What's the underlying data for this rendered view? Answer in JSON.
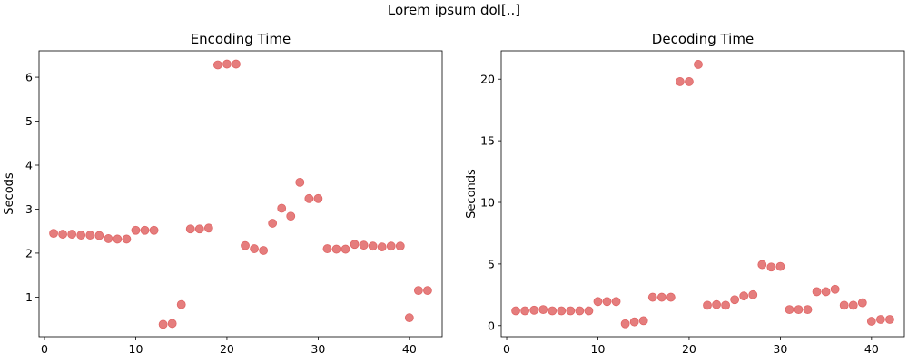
{
  "figure": {
    "suptitle": "Lorem ipsum dol[..]",
    "marker_color": "#e06666"
  },
  "chart_data": [
    {
      "type": "scatter",
      "title": "Encoding Time",
      "xlabel": "",
      "ylabel": "Secods",
      "xlim": [
        -0.6,
        43.6
      ],
      "ylim": [
        0.1,
        6.6
      ],
      "xticks": [
        0,
        10,
        20,
        30,
        40
      ],
      "yticks": [
        1,
        2,
        3,
        4,
        5,
        6
      ],
      "grid": false,
      "series": [
        {
          "x": [
            1,
            2,
            3,
            4,
            5,
            6,
            7,
            8,
            9,
            10,
            11,
            12,
            13,
            14,
            15,
            16,
            17,
            18,
            19,
            20,
            21,
            22,
            23,
            24,
            25,
            26,
            27,
            28,
            29,
            30,
            31,
            32,
            33,
            34,
            35,
            36,
            37,
            38,
            39,
            40,
            41,
            42
          ],
          "y": [
            2.45,
            2.43,
            2.43,
            2.41,
            2.41,
            2.4,
            2.33,
            2.32,
            2.32,
            2.52,
            2.52,
            2.52,
            0.38,
            0.4,
            0.83,
            2.55,
            2.55,
            2.57,
            6.28,
            6.3,
            6.3,
            2.17,
            2.1,
            2.06,
            2.68,
            3.02,
            2.84,
            3.61,
            3.24,
            3.24,
            2.1,
            2.09,
            2.09,
            2.2,
            2.18,
            2.16,
            2.14,
            2.16,
            2.16,
            0.53,
            1.15,
            1.15
          ]
        }
      ]
    },
    {
      "type": "scatter",
      "title": "Decoding Time",
      "xlabel": "",
      "ylabel": "Seconds",
      "xlim": [
        -0.6,
        43.6
      ],
      "ylim": [
        -0.9,
        22.3
      ],
      "xticks": [
        0,
        10,
        20,
        30,
        40
      ],
      "yticks": [
        0,
        5,
        10,
        15,
        20
      ],
      "grid": false,
      "series": [
        {
          "x": [
            1,
            2,
            3,
            4,
            5,
            6,
            7,
            8,
            9,
            10,
            11,
            12,
            13,
            14,
            15,
            16,
            17,
            18,
            19,
            20,
            21,
            22,
            23,
            24,
            25,
            26,
            27,
            28,
            29,
            30,
            31,
            32,
            33,
            34,
            35,
            36,
            37,
            38,
            39,
            40,
            41,
            42
          ],
          "y": [
            1.2,
            1.2,
            1.25,
            1.3,
            1.2,
            1.2,
            1.2,
            1.2,
            1.2,
            1.95,
            1.95,
            1.95,
            0.15,
            0.3,
            0.4,
            2.3,
            2.3,
            2.3,
            19.8,
            19.8,
            21.2,
            1.65,
            1.7,
            1.65,
            2.1,
            2.4,
            2.5,
            4.95,
            4.75,
            4.8,
            1.3,
            1.3,
            1.3,
            2.75,
            2.75,
            2.95,
            1.65,
            1.65,
            1.85,
            0.35,
            0.5,
            0.5
          ]
        }
      ]
    }
  ]
}
